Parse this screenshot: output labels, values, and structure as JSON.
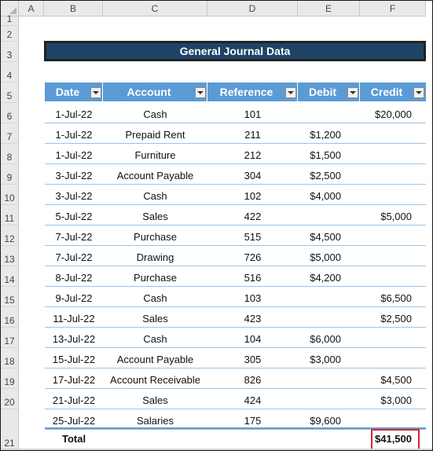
{
  "columns": [
    "A",
    "B",
    "C",
    "D",
    "E",
    "F"
  ],
  "row_numbers": [
    "1",
    "2",
    "3",
    "4",
    "5",
    "6",
    "7",
    "8",
    "9",
    "10",
    "11",
    "12",
    "13",
    "14",
    "15",
    "16",
    "17",
    "18",
    "19",
    "20",
    "21"
  ],
  "title": "General Journal Data",
  "headers": {
    "date": "Date",
    "account": "Account",
    "reference": "Reference",
    "debit": "Debit",
    "credit": "Credit"
  },
  "rows": [
    {
      "date": "1-Jul-22",
      "account": "Cash",
      "reference": "101",
      "debit": "",
      "credit": "$20,000"
    },
    {
      "date": "1-Jul-22",
      "account": "Prepaid Rent",
      "reference": "211",
      "debit": "$1,200",
      "credit": ""
    },
    {
      "date": "1-Jul-22",
      "account": "Furniture",
      "reference": "212",
      "debit": "$1,500",
      "credit": ""
    },
    {
      "date": "3-Jul-22",
      "account": "Account Payable",
      "reference": "304",
      "debit": "$2,500",
      "credit": ""
    },
    {
      "date": "3-Jul-22",
      "account": "Cash",
      "reference": "102",
      "debit": "$4,000",
      "credit": ""
    },
    {
      "date": "5-Jul-22",
      "account": "Sales",
      "reference": "422",
      "debit": "",
      "credit": "$5,000"
    },
    {
      "date": "7-Jul-22",
      "account": "Purchase",
      "reference": "515",
      "debit": "$4,500",
      "credit": ""
    },
    {
      "date": "7-Jul-22",
      "account": "Drawing",
      "reference": "726",
      "debit": "$5,000",
      "credit": ""
    },
    {
      "date": "8-Jul-22",
      "account": "Purchase",
      "reference": "516",
      "debit": "$4,200",
      "credit": ""
    },
    {
      "date": "9-Jul-22",
      "account": "Cash",
      "reference": "103",
      "debit": "",
      "credit": "$6,500"
    },
    {
      "date": "11-Jul-22",
      "account": "Sales",
      "reference": "423",
      "debit": "",
      "credit": "$2,500"
    },
    {
      "date": "13-Jul-22",
      "account": "Cash",
      "reference": "104",
      "debit": "$6,000",
      "credit": ""
    },
    {
      "date": "15-Jul-22",
      "account": "Account Payable",
      "reference": "305",
      "debit": "$3,000",
      "credit": ""
    },
    {
      "date": "17-Jul-22",
      "account": "Account Receivable",
      "reference": "826",
      "debit": "",
      "credit": "$4,500"
    },
    {
      "date": "21-Jul-22",
      "account": "Sales",
      "reference": "424",
      "debit": "",
      "credit": "$3,000"
    },
    {
      "date": "25-Jul-22",
      "account": "Salaries",
      "reference": "175",
      "debit": "$9,600",
      "credit": ""
    }
  ],
  "total": {
    "label": "Total",
    "credit": "$41,500"
  },
  "colors": {
    "banner": "#1d4467",
    "header": "#5b9bd5",
    "row_border": "#9dc3e6",
    "highlight": "#d9262c"
  }
}
